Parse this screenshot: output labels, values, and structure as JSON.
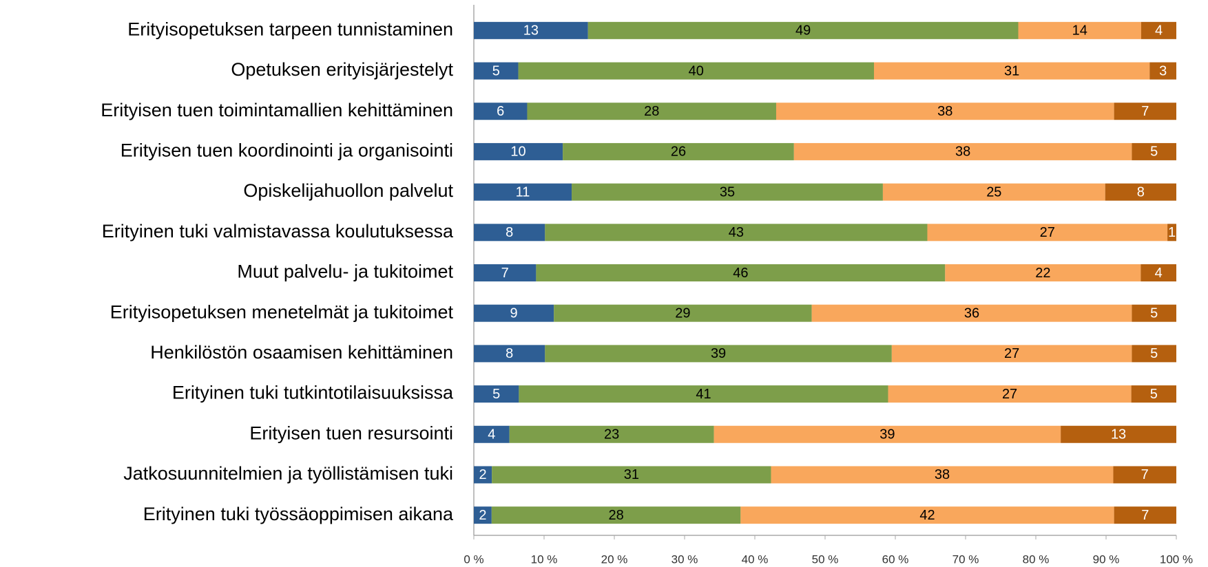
{
  "chart_data": {
    "type": "bar",
    "orientation": "horizontal",
    "stacking": "percent",
    "categories": [
      "Erityisopetuksen tarpeen tunnistaminen",
      "Opetuksen erityisjärjestelyt",
      "Erityisen tuen toimintamallien kehittäminen",
      "Erityisen tuen koordinointi ja organisointi",
      "Opiskelijahuollon palvelut",
      "Erityinen tuki valmistavassa koulutuksessa",
      "Muut palvelu- ja tukitoimet",
      "Erityisopetuksen menetelmät ja tukitoimet",
      "Henkilöstön osaamisen kehittäminen",
      "Erityinen tuki tutkintotilaisuuksissa",
      "Erityisen tuen resursointi",
      "Jatkosuunnitelmien ja työllistämisen tuki",
      "Erityinen tuki työssäoppimisen aikana"
    ],
    "series": [
      {
        "color": "#2e5e94",
        "label_color": "#ffffff",
        "values": [
          13,
          5,
          6,
          10,
          11,
          8,
          7,
          9,
          8,
          5,
          4,
          2,
          2
        ]
      },
      {
        "color": "#7d9e4a",
        "label_color": "#000000",
        "values": [
          49,
          40,
          28,
          26,
          35,
          43,
          46,
          29,
          39,
          41,
          23,
          31,
          28
        ]
      },
      {
        "color": "#f9a75c",
        "label_color": "#000000",
        "values": [
          14,
          31,
          38,
          38,
          25,
          27,
          22,
          36,
          27,
          27,
          39,
          38,
          42
        ]
      },
      {
        "color": "#b5600f",
        "label_color": "#ffffff",
        "values": [
          4,
          3,
          7,
          5,
          8,
          1,
          4,
          5,
          5,
          5,
          13,
          7,
          7
        ]
      }
    ],
    "xlim": [
      0,
      100
    ],
    "xticks": [
      {
        "value": 0,
        "label": "0 %"
      },
      {
        "value": 10,
        "label": "10 %"
      },
      {
        "value": 20,
        "label": "20 %"
      },
      {
        "value": 30,
        "label": "30 %"
      },
      {
        "value": 40,
        "label": "40 %"
      },
      {
        "value": 50,
        "label": "50 %"
      },
      {
        "value": 60,
        "label": "60 %"
      },
      {
        "value": 70,
        "label": "70 %"
      },
      {
        "value": 80,
        "label": "80 %"
      },
      {
        "value": 90,
        "label": "90 %"
      },
      {
        "value": 100,
        "label": "100 %"
      }
    ],
    "grid": false
  }
}
